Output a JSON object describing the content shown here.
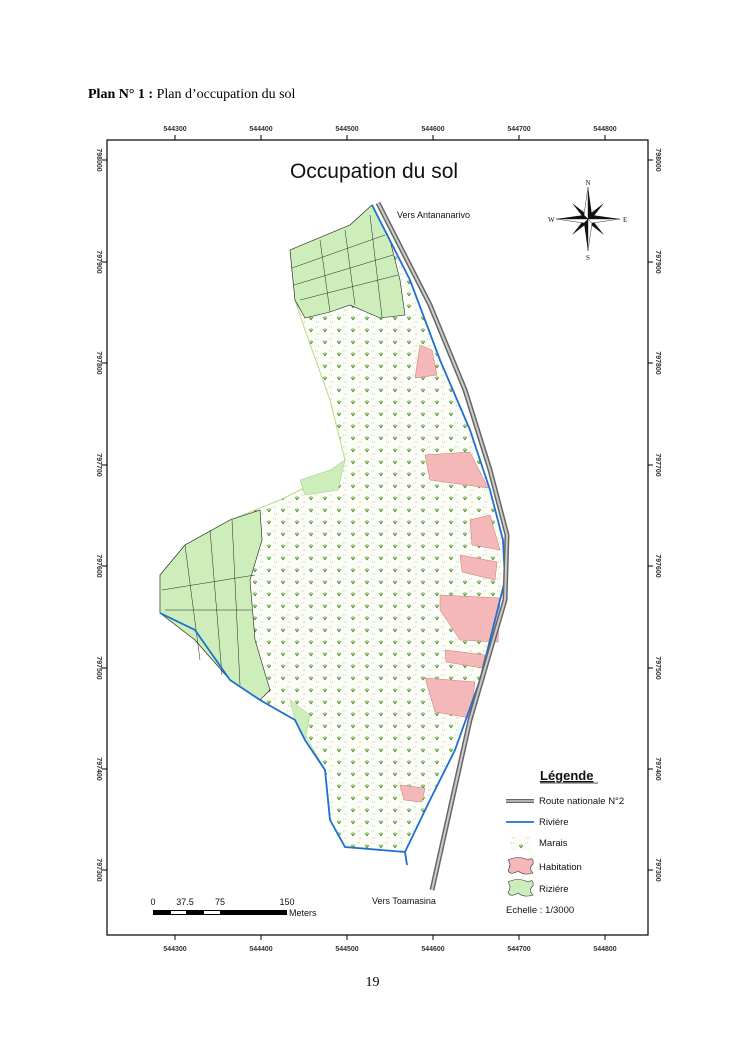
{
  "caption": {
    "bold": "Plan N° 1 :",
    "text": "Plan d’occupation du sol"
  },
  "map": {
    "title": "Occupation du sol",
    "x_ticks": [
      "544300",
      "544400",
      "544500",
      "544600",
      "544700",
      "544800"
    ],
    "y_ticks": [
      "798000",
      "797900",
      "797800",
      "797700",
      "797600",
      "797500",
      "797400",
      "797300"
    ],
    "labels": {
      "north": "Vers Antananarivo",
      "south": "Vers Toamasina"
    },
    "compass": {
      "n": "N",
      "s": "S",
      "e": "E",
      "w": "W"
    },
    "scale_bar": {
      "ticks": [
        "0",
        "37.5",
        "75",
        "150"
      ],
      "unit": "Meters"
    },
    "legend": {
      "title": "Légende",
      "items": [
        {
          "label": "Route nationale N°2",
          "color": "#8a8a8a"
        },
        {
          "label": "Riviére",
          "color": "#1f6fd1"
        },
        {
          "label": "Marais",
          "color": "#5a9a3a"
        },
        {
          "label": "Habitation",
          "color": "#f4b8b8"
        },
        {
          "label": "Riziére",
          "color": "#cdeebb"
        }
      ],
      "scale_text": "Echelle : 1/3000"
    }
  },
  "page_number": "19"
}
